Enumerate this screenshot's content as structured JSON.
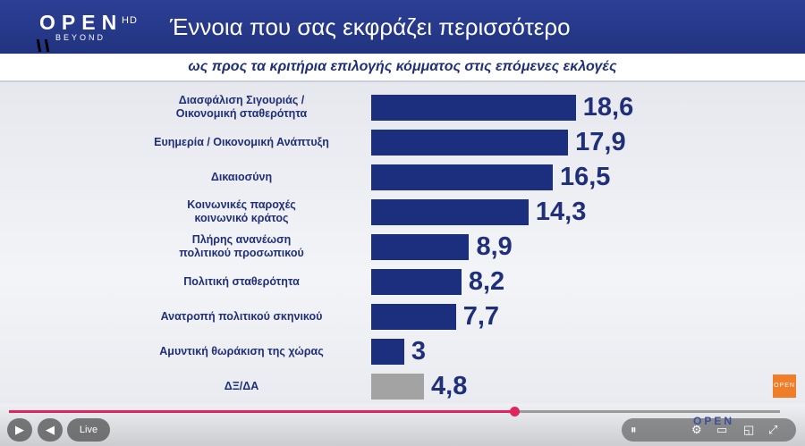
{
  "header": {
    "logo_main": "OPEN",
    "logo_sub": "BEYOND",
    "logo_hd": "HD",
    "title": "Έννοια που σας εκφράζει περισσότερο",
    "subtitle": "ως προς τα κριτήρια επιλογής κόμματος στις επόμενες εκλογές"
  },
  "chart_data": {
    "type": "bar",
    "orientation": "horizontal",
    "title": "Έννοια που σας εκφράζει περισσότερο",
    "subtitle": "ως προς τα κριτήρια επιλογής κόμματος στις επόμενες εκλογές",
    "categories": [
      [
        "Διασφάλιση Σιγουριάς /",
        "Οικονομική σταθερότητα"
      ],
      [
        "Ευημερία / Οικονομική Ανάπτυξη"
      ],
      [
        "Δικαιοσύνη"
      ],
      [
        "Κοινωνικές παροχές",
        "κοινωνικό κράτος"
      ],
      [
        "Πλήρης ανανέωση",
        "πολιτικού προσωπικού"
      ],
      [
        "Πολιτική σταθερότητα"
      ],
      [
        "Ανατροπή πολιτικού σκηνικού"
      ],
      [
        "Αμυντική θωράκιση της χώρας"
      ],
      [
        "ΔΞ/ΔΑ"
      ]
    ],
    "values": [
      18.6,
      17.9,
      16.5,
      14.3,
      8.9,
      8.2,
      7.7,
      3,
      4.8
    ],
    "value_labels": [
      "18,6",
      "17,9",
      "16,5",
      "14,3",
      "8,9",
      "8,2",
      "7,7",
      "3",
      "4,8"
    ],
    "bar_colors": [
      "#1c2f7e",
      "#1c2f7e",
      "#1c2f7e",
      "#1c2f7e",
      "#1c2f7e",
      "#1c2f7e",
      "#1c2f7e",
      "#1c2f7e",
      "#a3a3a3"
    ],
    "xlim": [
      0,
      20
    ],
    "grid": false,
    "legend": "none"
  },
  "player": {
    "live_label": "Live",
    "play_icon": "play-icon",
    "volume_icon": "volume-icon",
    "badge_label": "OPEN",
    "watermark": "OPEN",
    "accent": "#e0245e",
    "progress_fraction": 0.655
  }
}
